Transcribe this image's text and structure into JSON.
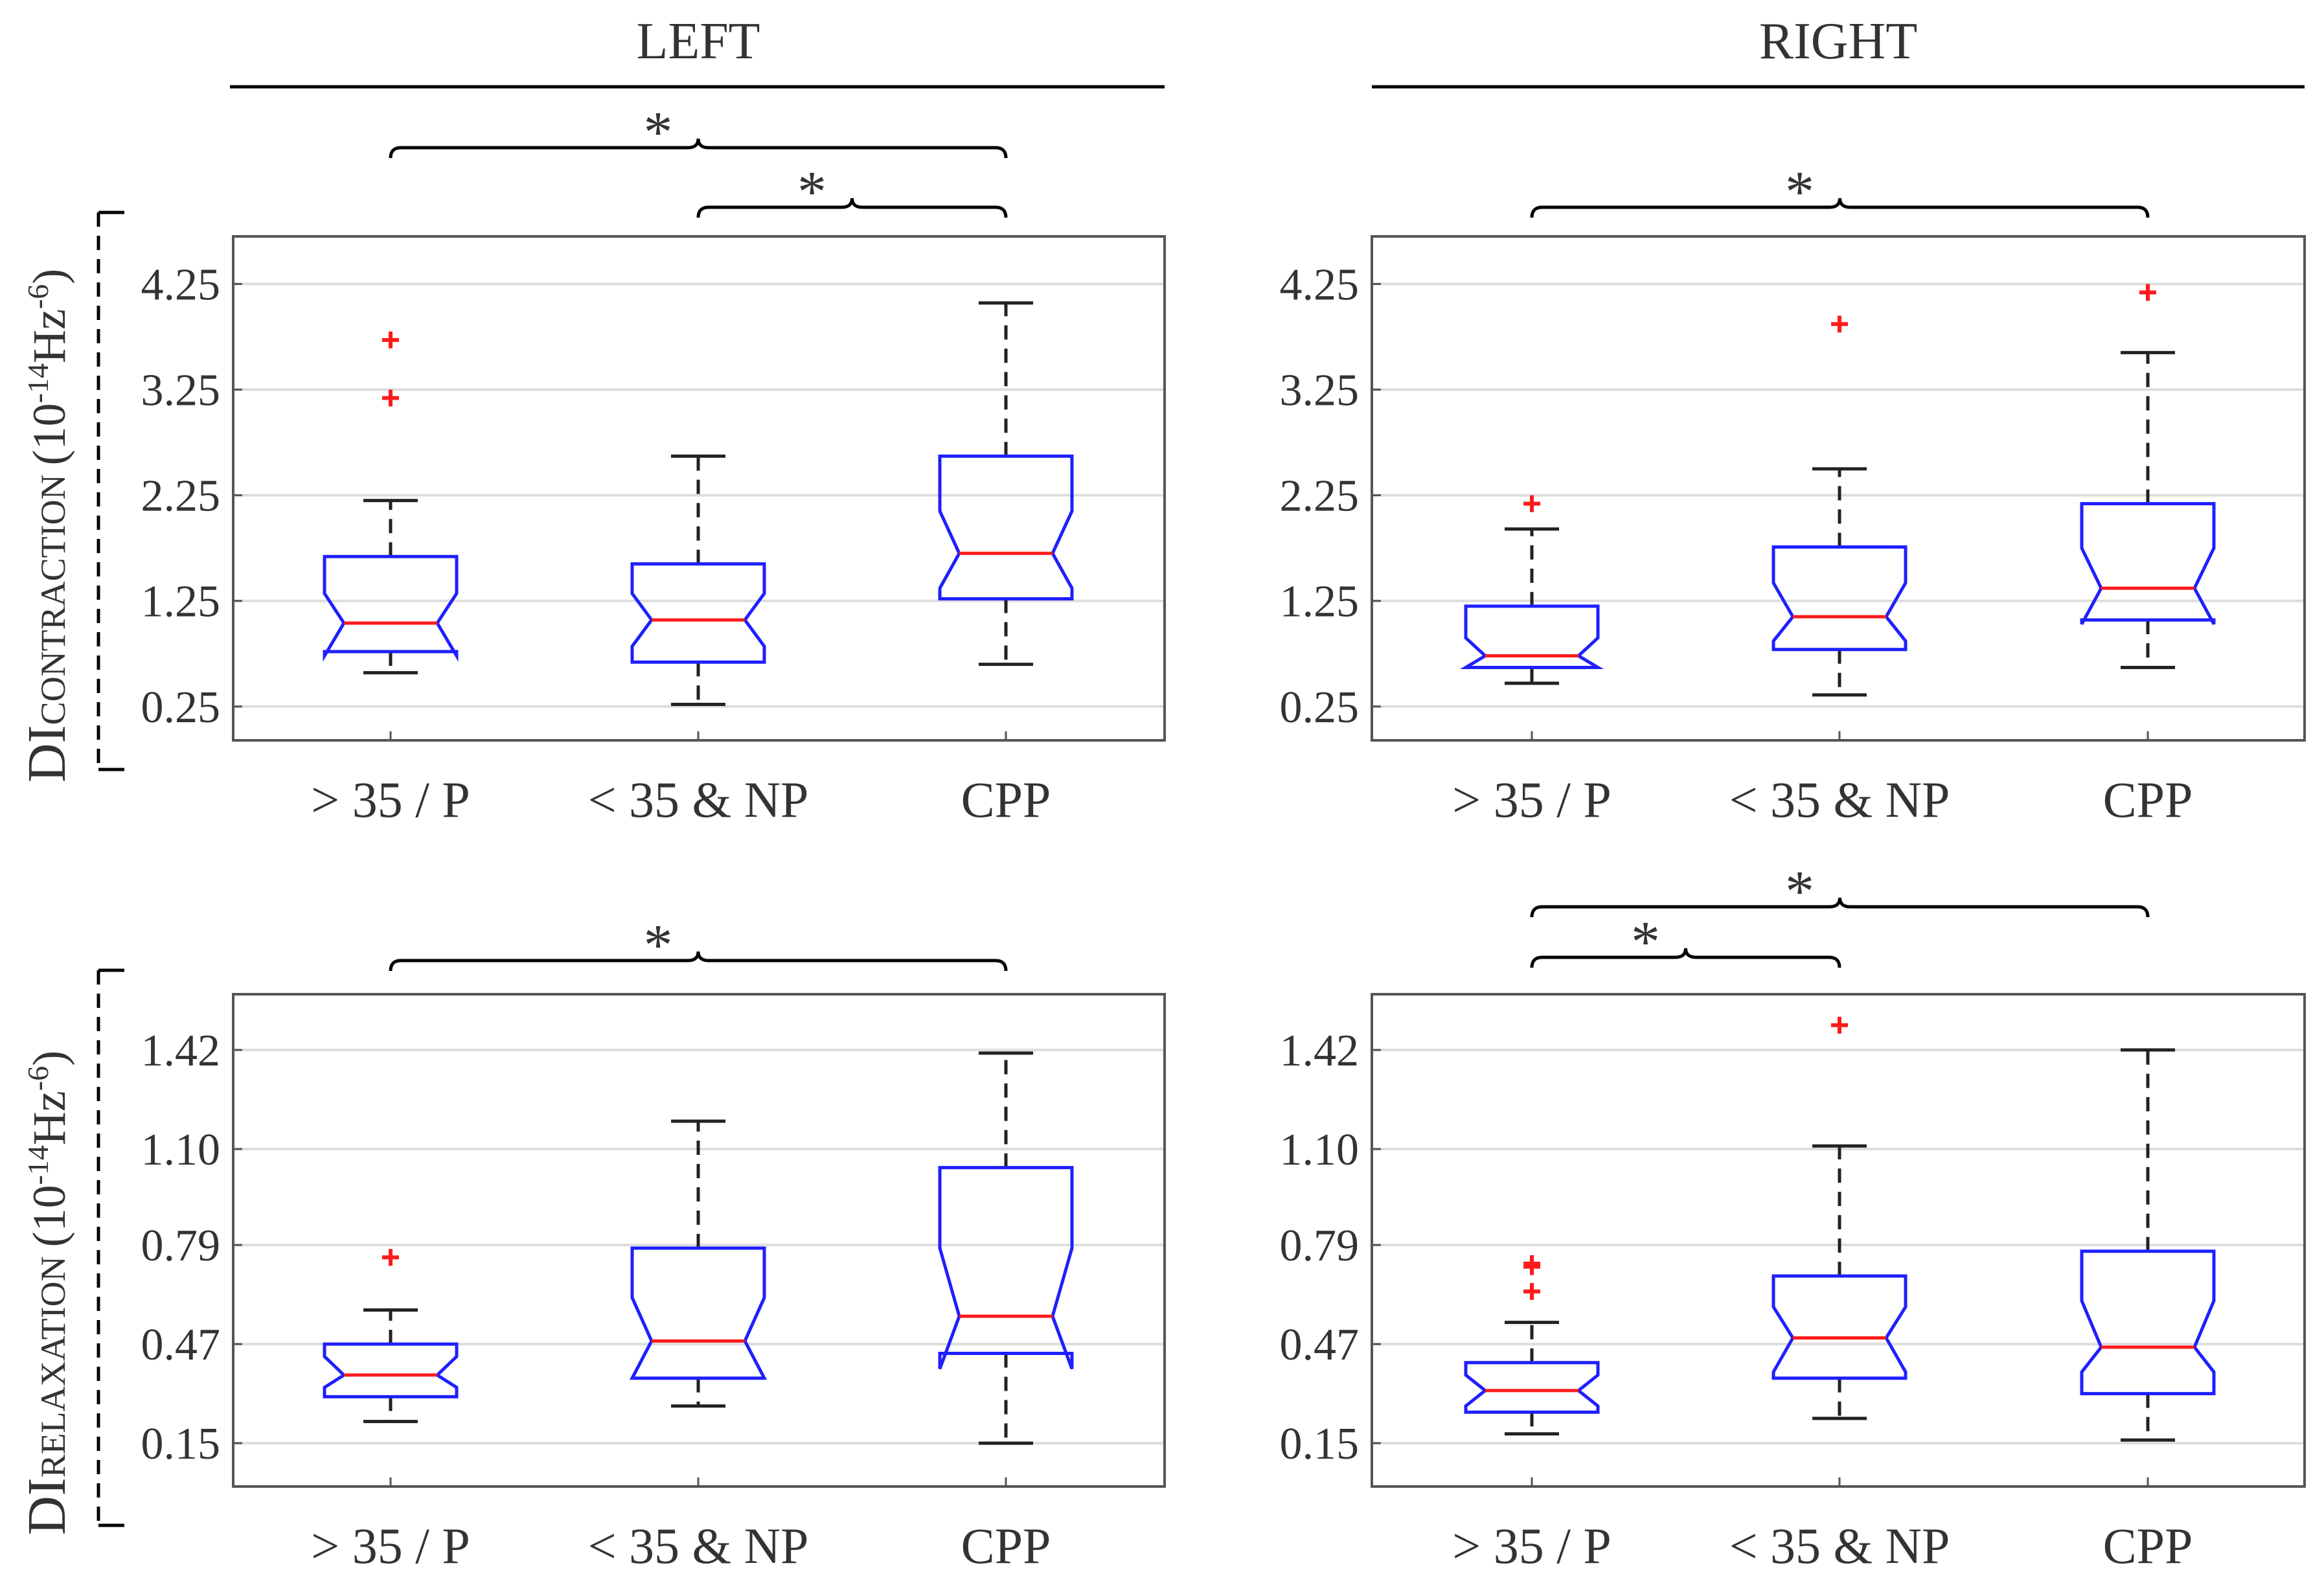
{
  "figure": {
    "column_titles": {
      "left": "LEFT",
      "right": "RIGHT"
    },
    "row_labels": {
      "top": {
        "main": "DI",
        "sub": "CONTRACTION",
        "unit_open": "(10",
        "unit_exp1": "-14",
        "unit_mid": "Hz",
        "unit_exp2": "-6",
        "unit_close": ")"
      },
      "bottom": {
        "main": "DI",
        "sub": "RELAXATION",
        "unit_open": "(10",
        "unit_exp1": "-14",
        "unit_mid": "Hz",
        "unit_exp2": "-6",
        "unit_close": ")"
      }
    },
    "significance_marker": "*"
  },
  "colors": {
    "box": "#1f1fff",
    "median": "#ff1a1a",
    "outlier": "#ff1a1a",
    "whisker": "#222222",
    "grid": "#dddddd",
    "axis": "#555555",
    "text": "#333333"
  },
  "chart_data": [
    {
      "id": "left-contraction",
      "type": "box",
      "side": "LEFT",
      "phase": "CONTRACTION",
      "categories": [
        "> 35 / P",
        "< 35 & NP",
        "CPP"
      ],
      "yticks": [
        "0.25",
        "1.25",
        "2.25",
        "3.25",
        "4.25"
      ],
      "ylim": [
        -0.07,
        4.7
      ],
      "boxes": [
        {
          "whisker_low": 0.57,
          "q1": 0.77,
          "notch_low": 0.73,
          "median": 1.04,
          "notch_high": 1.32,
          "q3": 1.67,
          "whisker_high": 2.2,
          "outliers": [
            3.17,
            3.72
          ]
        },
        {
          "whisker_low": 0.27,
          "q1": 0.67,
          "notch_low": 0.82,
          "median": 1.07,
          "notch_high": 1.32,
          "q3": 1.6,
          "whisker_high": 2.62,
          "outliers": []
        },
        {
          "whisker_low": 0.65,
          "q1": 1.27,
          "notch_low": 1.37,
          "median": 1.7,
          "notch_high": 2.1,
          "q3": 2.62,
          "whisker_high": 4.07,
          "outliers": []
        }
      ],
      "significance": [
        {
          "from": 0,
          "to": 2,
          "label": "*"
        },
        {
          "from": 1,
          "to": 2,
          "label": "*"
        }
      ]
    },
    {
      "id": "right-contraction",
      "type": "box",
      "side": "RIGHT",
      "phase": "CONTRACTION",
      "categories": [
        "> 35 / P",
        "< 35 & NP",
        "CPP"
      ],
      "yticks": [
        "0.25",
        "1.25",
        "2.25",
        "3.25",
        "4.25"
      ],
      "ylim": [
        -0.07,
        4.7
      ],
      "boxes": [
        {
          "whisker_low": 0.47,
          "q1": 0.62,
          "notch_low": 0.62,
          "median": 0.73,
          "notch_high": 0.9,
          "q3": 1.2,
          "whisker_high": 1.93,
          "outliers": [
            2.17
          ]
        },
        {
          "whisker_low": 0.36,
          "q1": 0.79,
          "notch_low": 0.87,
          "median": 1.1,
          "notch_high": 1.42,
          "q3": 1.76,
          "whisker_high": 2.5,
          "outliers": [
            3.87
          ]
        },
        {
          "whisker_low": 0.62,
          "q1": 1.07,
          "notch_low": 1.03,
          "median": 1.37,
          "notch_high": 1.75,
          "q3": 2.17,
          "whisker_high": 3.6,
          "outliers": [
            4.17
          ]
        }
      ],
      "significance": [
        {
          "from": 0,
          "to": 2,
          "label": "*"
        }
      ]
    },
    {
      "id": "left-relaxation",
      "type": "box",
      "side": "LEFT",
      "phase": "RELAXATION",
      "categories": [
        "> 35 / P",
        "< 35 & NP",
        "CPP"
      ],
      "yticks": [
        "0.15",
        "0.47",
        "0.79",
        "1.10",
        "1.42"
      ],
      "ylim": [
        0.01,
        1.6
      ],
      "boxes": [
        {
          "whisker_low": 0.22,
          "q1": 0.3,
          "notch_low": 0.33,
          "median": 0.37,
          "notch_high": 0.43,
          "q3": 0.47,
          "whisker_high": 0.58,
          "outliers": [
            0.75
          ]
        },
        {
          "whisker_low": 0.27,
          "q1": 0.36,
          "notch_low": 0.36,
          "median": 0.48,
          "notch_high": 0.62,
          "q3": 0.78,
          "whisker_high": 1.19,
          "outliers": []
        },
        {
          "whisker_low": 0.15,
          "q1": 0.44,
          "notch_low": 0.39,
          "median": 0.56,
          "notch_high": 0.78,
          "q3": 1.04,
          "whisker_high": 1.41,
          "outliers": []
        }
      ],
      "significance": [
        {
          "from": 0,
          "to": 2,
          "label": "*"
        }
      ]
    },
    {
      "id": "right-relaxation",
      "type": "box",
      "side": "RIGHT",
      "phase": "RELAXATION",
      "categories": [
        "> 35 / P",
        "< 35 & NP",
        "CPP"
      ],
      "yticks": [
        "0.15",
        "0.47",
        "0.79",
        "1.10",
        "1.42"
      ],
      "ylim": [
        0.01,
        1.6
      ],
      "boxes": [
        {
          "whisker_low": 0.18,
          "q1": 0.25,
          "notch_low": 0.27,
          "median": 0.32,
          "notch_high": 0.37,
          "q3": 0.41,
          "whisker_high": 0.54,
          "outliers": [
            0.64,
            0.72,
            0.73
          ]
        },
        {
          "whisker_low": 0.23,
          "q1": 0.36,
          "notch_low": 0.38,
          "median": 0.49,
          "notch_high": 0.59,
          "q3": 0.69,
          "whisker_high": 1.11,
          "outliers": [
            1.5
          ]
        },
        {
          "whisker_low": 0.16,
          "q1": 0.31,
          "notch_low": 0.38,
          "median": 0.46,
          "notch_high": 0.61,
          "q3": 0.77,
          "whisker_high": 1.42,
          "outliers": []
        }
      ],
      "significance": [
        {
          "from": 0,
          "to": 2,
          "label": "*"
        },
        {
          "from": 0,
          "to": 1,
          "label": "*"
        }
      ]
    }
  ]
}
